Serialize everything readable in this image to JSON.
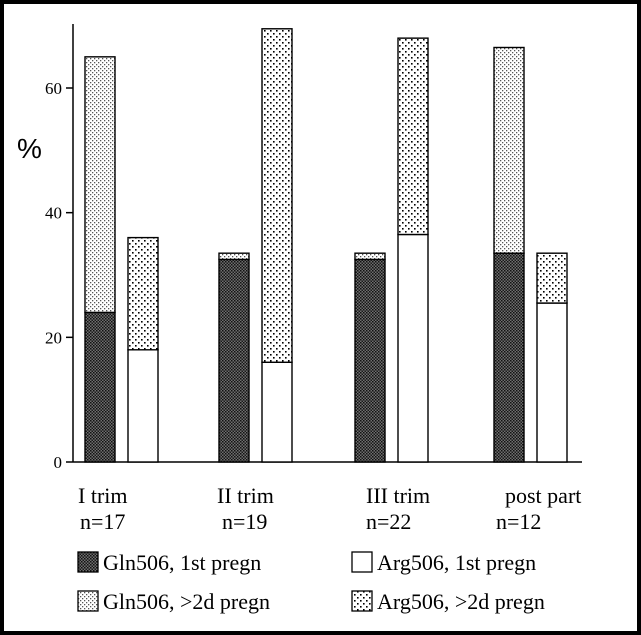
{
  "chart_data": {
    "type": "bar",
    "stacked": true,
    "ylabel": "%",
    "ylim": [
      0,
      70
    ],
    "yticks": [
      0,
      20,
      40,
      60
    ],
    "grid": false,
    "legend_position": "bottom",
    "categories": [
      {
        "name": "I trim",
        "n": "n=17"
      },
      {
        "name": "II trim",
        "n": "n=19"
      },
      {
        "name": "III trim",
        "n": "n=22"
      },
      {
        "name": "post part",
        "n": "n=12"
      }
    ],
    "stacks": [
      {
        "group": "Gln506",
        "segments": [
          {
            "series": "Gln506, 1st pregn",
            "values": [
              24,
              32.5,
              32.5,
              33.5
            ]
          },
          {
            "series": "Gln506, >2d pregn",
            "values": [
              41,
              1,
              1,
              33
            ]
          }
        ]
      },
      {
        "group": "Arg506",
        "segments": [
          {
            "series": "Arg506, 1st pregn",
            "values": [
              18,
              16,
              36.5,
              25.5
            ]
          },
          {
            "series": "Arg506, >2d pregn",
            "values": [
              18,
              53.5,
              31.5,
              8
            ]
          }
        ]
      }
    ],
    "legend": [
      {
        "label": "Gln506, 1st pregn",
        "pattern": "dense"
      },
      {
        "label": "Arg506, 1st pregn",
        "pattern": "white"
      },
      {
        "label": "Gln506, >2d pregn",
        "pattern": "fine"
      },
      {
        "label": "Arg506,  >2d pregn",
        "pattern": "sparse"
      }
    ]
  }
}
